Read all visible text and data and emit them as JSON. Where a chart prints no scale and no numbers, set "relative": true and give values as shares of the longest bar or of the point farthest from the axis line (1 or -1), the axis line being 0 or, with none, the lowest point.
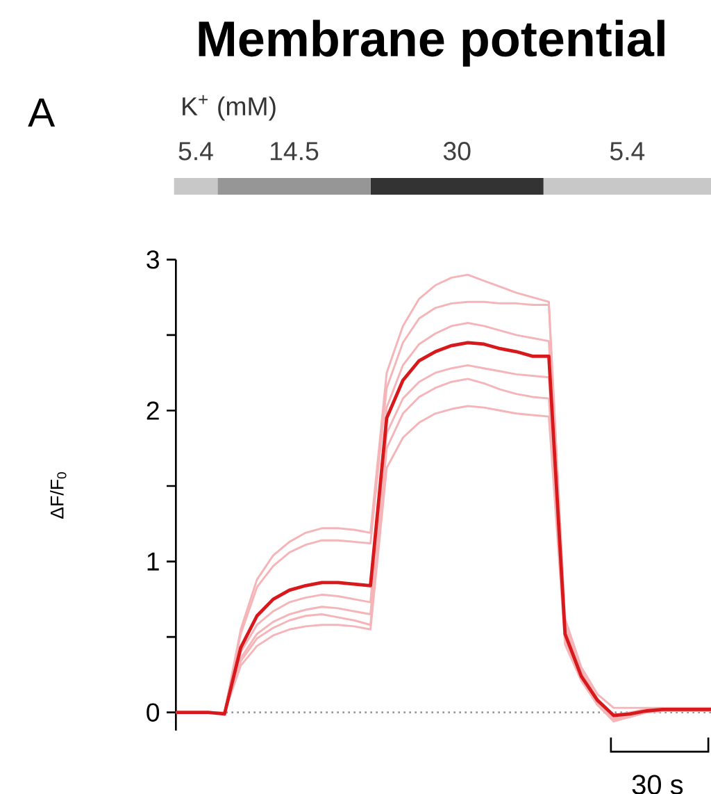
{
  "chart_data": [
    {
      "type": "bar",
      "title": "Membrane potential",
      "annotations": [
        "A",
        "K$^{+}$ (mM)"
      ],
      "orientation": "horizontal",
      "stacked": true,
      "relative": true,
      "categories": [
        null
      ],
      "series": [
        {
          "name": "5.4",
          "color": "#c8c8c8",
          "values": [
            0.081
          ]
        },
        {
          "name": "14.5",
          "color": "#969696",
          "values": [
            0.285
          ]
        },
        {
          "name": "30",
          "color": "#333333",
          "values": [
            0.322
          ]
        },
        {
          "name": "5.4",
          "color": "#c8c8c8",
          "values": [
            0.312
          ]
        }
      ]
    },
    {
      "type": "line",
      "ylabel": "ΔF/F$_{0}$",
      "annotations": [
        "30 s"
      ],
      "categories": [
        null,
        null,
        null,
        null,
        null,
        null,
        null,
        null,
        null,
        null,
        null,
        null,
        null,
        null,
        null,
        null,
        null,
        null,
        null,
        null,
        null,
        null,
        null,
        null,
        null,
        null,
        null,
        null,
        null,
        null,
        null,
        null,
        null,
        null
      ],
      "ylim": [
        -0.12,
        3
      ],
      "yticks": [
        0,
        {
          "value": 0.5,
          "label": null
        },
        1,
        {
          "value": 1.5,
          "label": null
        },
        2,
        {
          "value": 2.5,
          "label": null
        },
        3
      ],
      "tick_labels": "y",
      "marker": "none",
      "line_style": "solid",
      "ref_lines": [
        {
          "axis": "y",
          "value": 0,
          "color": "#999999",
          "line_style": "dotted"
        }
      ],
      "series": [
        {
          "color": "#f5b5b8",
          "values": [
            0,
            0,
            0,
            0,
            0.55,
            0.88,
            1.04,
            1.13,
            1.19,
            1.22,
            1.22,
            1.21,
            1.19,
            2.25,
            2.56,
            2.74,
            2.83,
            2.88,
            2.9,
            2.86,
            2.82,
            2.78,
            2.75,
            2.72,
            0.62,
            0.3,
            0.12,
            0.03,
            0.03,
            0.03,
            0.03,
            0.03,
            0.03,
            0.03
          ]
        },
        {
          "color": "#f5b5b8",
          "values": [
            0,
            0,
            0,
            0,
            0.52,
            0.83,
            0.97,
            1.06,
            1.11,
            1.14,
            1.14,
            1.13,
            1.12,
            2.15,
            2.45,
            2.61,
            2.68,
            2.71,
            2.72,
            2.72,
            2.71,
            2.71,
            2.7,
            2.7,
            0.58,
            0.28,
            0.09,
            -0.02,
            0,
            0.02,
            0.02,
            0.02,
            0.02,
            0.02
          ]
        },
        {
          "color": "#f5b5b8",
          "values": [
            0,
            0,
            0,
            0,
            0.4,
            0.58,
            0.67,
            0.73,
            0.76,
            0.78,
            0.77,
            0.75,
            0.73,
            2.02,
            2.3,
            2.44,
            2.51,
            2.56,
            2.58,
            2.56,
            2.53,
            2.5,
            2.48,
            2.46,
            0.55,
            0.26,
            0.07,
            -0.04,
            -0.02,
            0.01,
            0.01,
            0.02,
            0.02,
            0.02
          ]
        },
        {
          "color": "#f5b5b8",
          "values": [
            0,
            0,
            0,
            0,
            0.36,
            0.52,
            0.6,
            0.65,
            0.68,
            0.7,
            0.69,
            0.67,
            0.65,
            1.85,
            2.08,
            2.19,
            2.25,
            2.28,
            2.3,
            2.28,
            2.26,
            2.24,
            2.23,
            2.22,
            0.5,
            0.23,
            0.05,
            -0.05,
            -0.03,
            0,
            0.01,
            0.01,
            0.01,
            0.01
          ]
        },
        {
          "color": "#f5b5b8",
          "values": [
            0,
            0,
            0,
            0,
            0.34,
            0.49,
            0.56,
            0.61,
            0.64,
            0.65,
            0.63,
            0.61,
            0.58,
            1.75,
            1.98,
            2.09,
            2.15,
            2.19,
            2.21,
            2.18,
            2.14,
            2.11,
            2.09,
            2.08,
            0.48,
            0.22,
            0.05,
            -0.06,
            -0.03,
            0,
            0.01,
            0.01,
            0.01,
            0.01
          ]
        },
        {
          "color": "#f5b5b8",
          "values": [
            0,
            0,
            0,
            0,
            0.31,
            0.44,
            0.51,
            0.55,
            0.57,
            0.58,
            0.58,
            0.57,
            0.55,
            1.62,
            1.82,
            1.92,
            1.98,
            2.01,
            2.03,
            2.02,
            2,
            1.98,
            1.97,
            1.96,
            0.45,
            0.21,
            0.05,
            -0.05,
            -0.03,
            0,
            0.01,
            0.01,
            0.01,
            0.01
          ]
        },
        {
          "color": "#d7191c",
          "values": [
            0,
            0,
            0,
            -0.01,
            0.43,
            0.64,
            0.75,
            0.81,
            0.84,
            0.86,
            0.86,
            0.85,
            0.84,
            1.95,
            2.2,
            2.33,
            2.39,
            2.43,
            2.45,
            2.44,
            2.41,
            2.39,
            2.36,
            2.36,
            0.52,
            0.24,
            0.08,
            -0.02,
            -0.01,
            0.01,
            0.02,
            0.02,
            0.02,
            0.02
          ]
        }
      ]
    }
  ]
}
